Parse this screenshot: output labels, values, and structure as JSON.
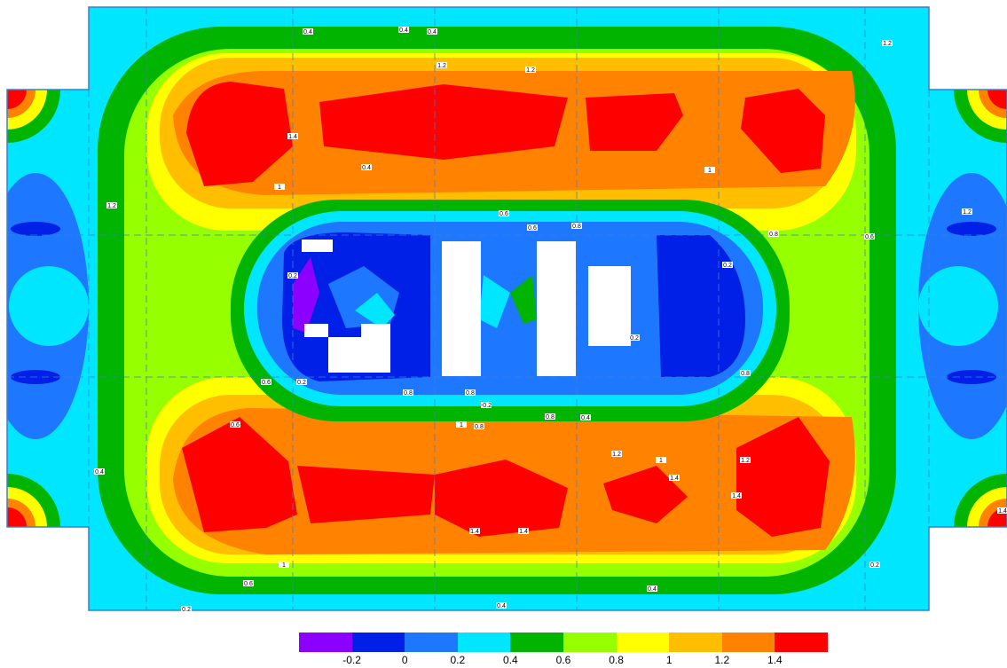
{
  "chart_data": {
    "type": "heatmap",
    "title": "",
    "xlabel": "",
    "ylabel": "",
    "color_scale": {
      "breaks": [
        -0.3,
        -0.2,
        -0.1,
        0,
        0.1,
        0.2,
        0.3,
        0.4,
        0.5,
        0.6,
        0.7,
        0.8,
        0.9,
        1.0,
        1.1,
        1.2,
        1.3,
        1.4,
        1.5
      ],
      "band_colors": [
        "#8c00ff",
        "#0020e8",
        "#1e78ff",
        "#00e6ff",
        "#00b400",
        "#96ff00",
        "#ffff00",
        "#ffbe00",
        "#ff8200",
        "#ff0000"
      ],
      "band_ranges": [
        [
          -0.3,
          -0.1
        ],
        [
          -0.1,
          0.1
        ],
        [
          0.1,
          0.3
        ],
        [
          0.3,
          0.5
        ],
        [
          0.5,
          0.7
        ],
        [
          0.7,
          0.9
        ],
        [
          0.9,
          1.1
        ],
        [
          1.1,
          1.3
        ],
        [
          1.3,
          1.5
        ],
        [
          1.5,
          1.7
        ]
      ],
      "tick_labels": [
        "-0.2",
        "0",
        "0.2",
        "0.4",
        "0.6",
        "0.8",
        "1",
        "1.2",
        "1.4"
      ]
    },
    "regions": [
      {
        "name": "upper-left-peak",
        "value": 1.5
      },
      {
        "name": "upper-center-left-peak",
        "value": 1.5
      },
      {
        "name": "upper-center-right-peak",
        "value": 1.5
      },
      {
        "name": "upper-right-peak",
        "value": 1.5
      },
      {
        "name": "lower-left-peak",
        "value": 1.5
      },
      {
        "name": "lower-center-peak",
        "value": 1.5
      },
      {
        "name": "lower-center-right-peak",
        "value": 1.5
      },
      {
        "name": "lower-right-peak",
        "value": 1.5
      },
      {
        "name": "central-left-trough",
        "value": -0.2
      },
      {
        "name": "central-right-trough",
        "value": 0.0
      },
      {
        "name": "corner-peaks",
        "value": 1.5
      }
    ],
    "contour_labels": [
      "0.4",
      "0.4",
      "0.4",
      "0.6",
      "0.8",
      "0.8",
      "1",
      "1",
      "1",
      "1.2",
      "1.2",
      "1.4",
      "1.4",
      "1.4",
      "1.4",
      "1.4",
      "0.6",
      "0.6",
      "0.8",
      "0.8",
      "0.8",
      "1",
      "1.2",
      "0.4",
      "0.2",
      "0.2",
      "-0.2",
      "0.2",
      "0.2",
      "0.8",
      "0.6",
      "0.6",
      "0.4",
      "0.4",
      "1.2",
      "0.4",
      "0.2",
      "0.2",
      "0.4",
      "0.8",
      "0.6",
      "1",
      "1.2",
      "1.2",
      "1.2",
      "1.4"
    ],
    "grid": true
  }
}
